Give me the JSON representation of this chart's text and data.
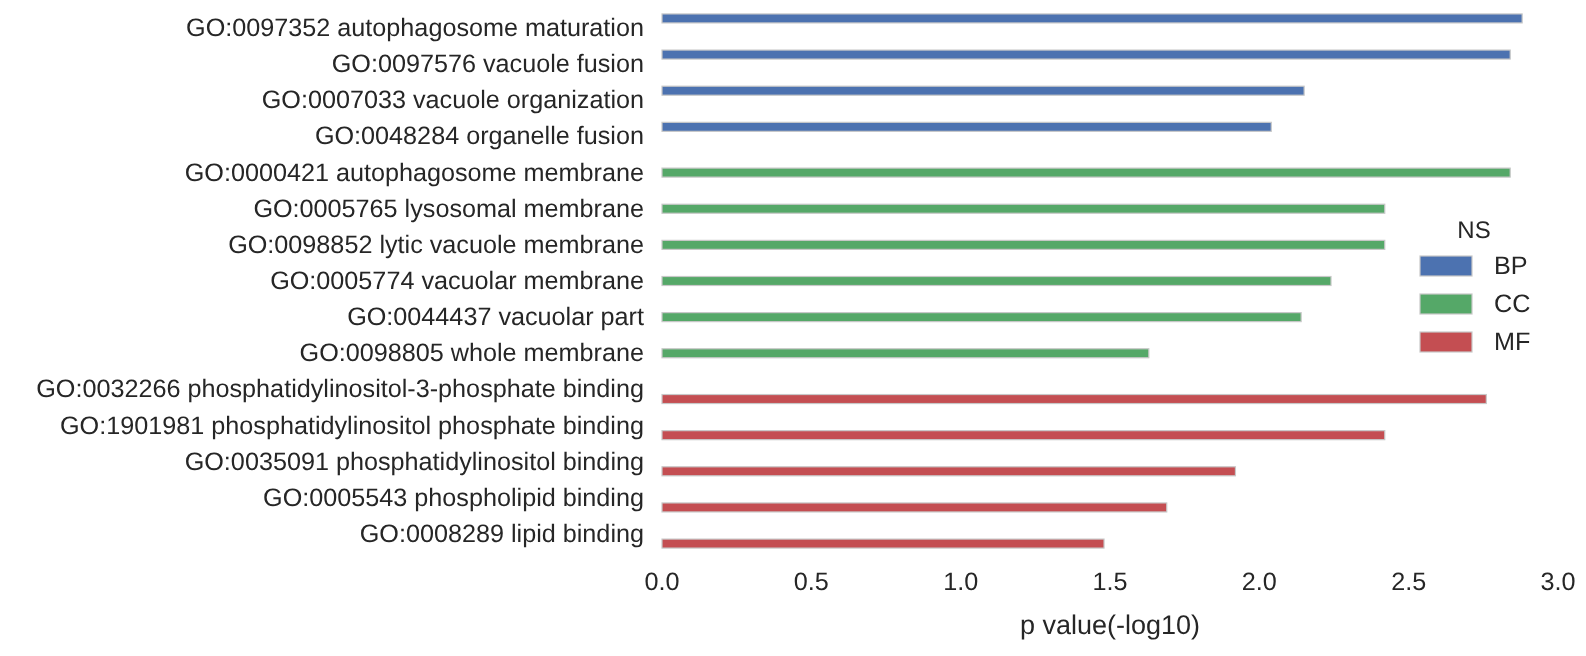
{
  "chart_data": {
    "type": "bar",
    "orientation": "horizontal",
    "xlabel": "p value(-log10)",
    "legend_title": "NS",
    "legend": "right",
    "grid": false,
    "categories": [
      "GO:0097352 autophagosome maturation",
      "GO:0097576 vacuole fusion",
      "GO:0007033 vacuole organization",
      "GO:0048284 organelle fusion",
      "GO:0000421 autophagosome membrane",
      "GO:0005765 lysosomal membrane",
      "GO:0098852 lytic vacuole membrane",
      "GO:0005774 vacuolar membrane",
      "GO:0044437 vacuolar part",
      "GO:0098805 whole membrane",
      "GO:0032266 phosphatidylinositol-3-phosphate binding",
      "GO:1901981 phosphatidylinositol phosphate binding",
      "GO:0035091 phosphatidylinositol binding",
      "GO:0005543 phospholipid binding",
      "GO:0008289 lipid binding"
    ],
    "xlim": [
      0,
      3
    ],
    "xticks": [
      {
        "value": 0,
        "label": "0.0"
      },
      {
        "value": 0.5,
        "label": "0.5"
      },
      {
        "value": 1,
        "label": "1.0"
      },
      {
        "value": 1.5,
        "label": "1.5"
      },
      {
        "value": 2,
        "label": "2.0"
      },
      {
        "value": 2.5,
        "label": "2.5"
      },
      {
        "value": 3,
        "label": "3.0"
      }
    ],
    "series": [
      {
        "name": "BP",
        "color": "#4c72b0",
        "values": [
          2.88,
          2.84,
          2.15,
          2.04,
          null,
          null,
          null,
          null,
          null,
          null,
          null,
          null,
          null,
          null,
          null
        ]
      },
      {
        "name": "CC",
        "color": "#55a868",
        "values": [
          null,
          null,
          null,
          null,
          2.84,
          2.42,
          2.42,
          2.24,
          2.14,
          1.63,
          null,
          null,
          null,
          null,
          null
        ]
      },
      {
        "name": "MF",
        "color": "#c44e52",
        "values": [
          null,
          null,
          null,
          null,
          null,
          null,
          null,
          null,
          null,
          null,
          2.76,
          2.42,
          1.92,
          1.69,
          1.48
        ]
      }
    ]
  }
}
